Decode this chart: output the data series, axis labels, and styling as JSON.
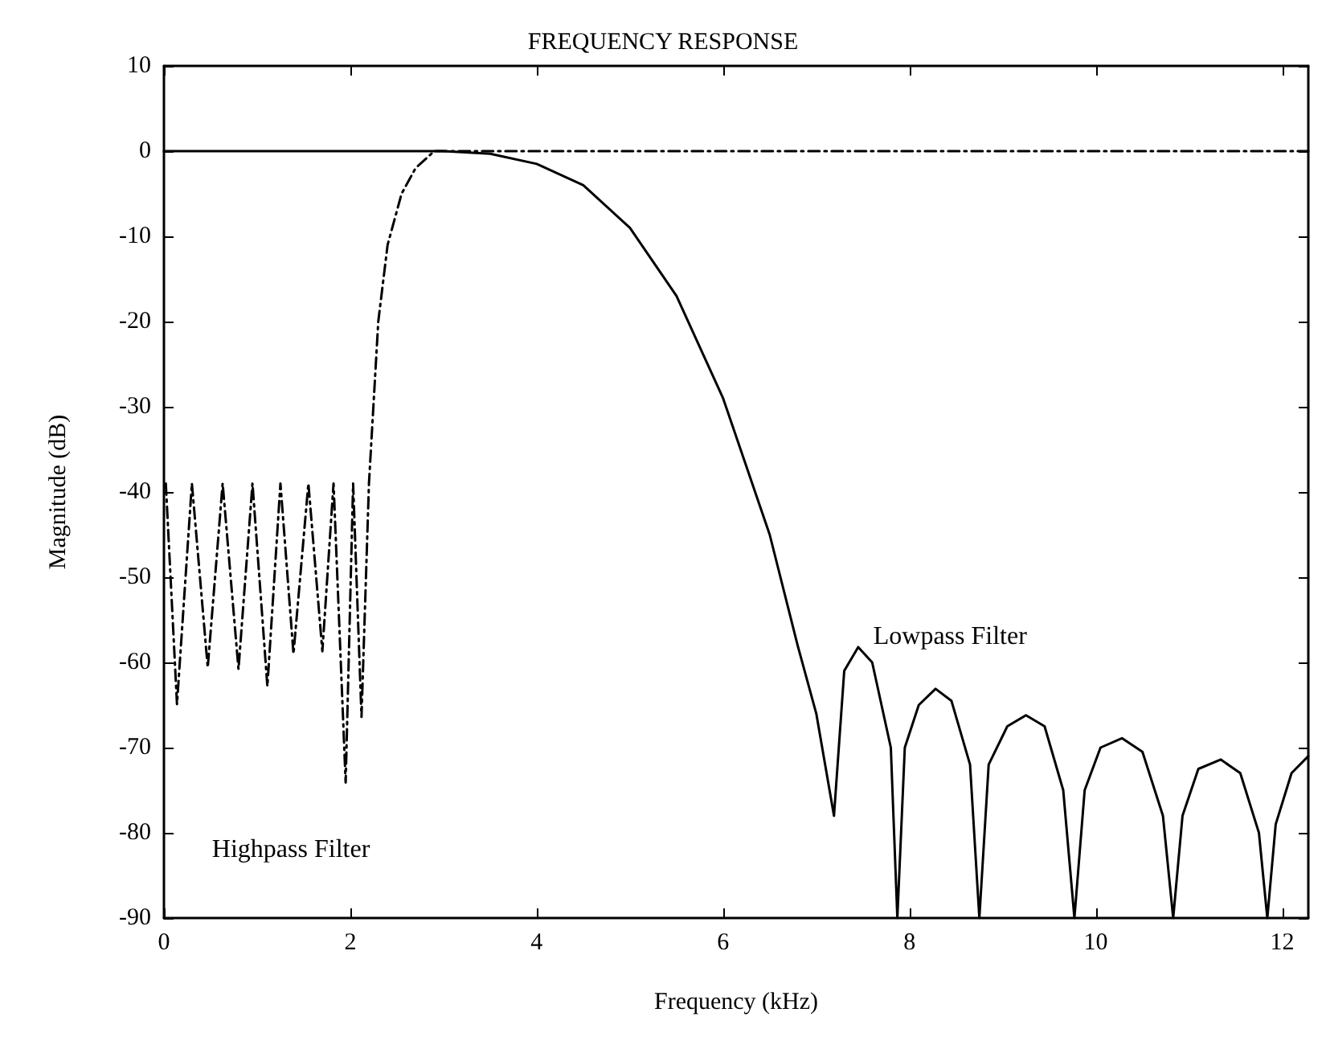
{
  "chart_data": {
    "type": "line",
    "title": "FREQUENCY RESPONSE",
    "xlabel": "Frequency (kHz)",
    "ylabel": "Magnitude (dB)",
    "xlim": [
      0,
      12.28
    ],
    "xticks": [
      0,
      2,
      4,
      6,
      8,
      10,
      12
    ],
    "ylim": [
      -90,
      10
    ],
    "yticks": [
      -90,
      -80,
      -70,
      -60,
      -50,
      -40,
      -30,
      -20,
      -10,
      0,
      10
    ],
    "grid": false,
    "marker": "none",
    "series": [
      {
        "color": "#000000",
        "line_style": "solid",
        "x": [
          0,
          1,
          2,
          3,
          3.5,
          4,
          4.5,
          5,
          5.5,
          6,
          6.5,
          6.8,
          7.0,
          7.19,
          7.3,
          7.45,
          7.6,
          7.8,
          7.87,
          7.95,
          8.1,
          8.28,
          8.45,
          8.65,
          8.75,
          8.85,
          9.05,
          9.25,
          9.45,
          9.65,
          9.77,
          9.88,
          10.05,
          10.28,
          10.5,
          10.72,
          10.83,
          10.93,
          11.1,
          11.34,
          11.55,
          11.75,
          11.84,
          11.93,
          12.1,
          12.28
        ],
        "values": [
          0,
          0,
          0,
          0,
          -0.3,
          -1.5,
          -4,
          -9,
          -17,
          -29,
          -45,
          -58,
          -66,
          -78,
          -61,
          -58.2,
          -60,
          -70,
          -90,
          -70,
          -65,
          -63.1,
          -64.5,
          -72,
          -90,
          -72,
          -67.5,
          -66.2,
          -67.5,
          -75,
          -90,
          -75,
          -70,
          -68.9,
          -70.5,
          -78,
          -90,
          -78,
          -72.5,
          -71.4,
          -73,
          -80,
          -90,
          -79,
          -73,
          -71
        ]
      },
      {
        "color": "#000000",
        "line_style": "dashed",
        "x": [
          0.02,
          0.14,
          0.3,
          0.47,
          0.63,
          0.8,
          0.95,
          1.11,
          1.25,
          1.39,
          1.55,
          1.7,
          1.82,
          1.95,
          2.03,
          2.12,
          2.2,
          2.3,
          2.4,
          2.55,
          2.7,
          2.9,
          4,
          6,
          8,
          10,
          12.28
        ],
        "values": [
          -39,
          -64.9,
          -39,
          -60.6,
          -39,
          -60.8,
          -39,
          -62.8,
          -39,
          -59,
          -39,
          -58.7,
          -39,
          -74.1,
          -39,
          -66.4,
          -39,
          -20,
          -11,
          -5,
          -2,
          0,
          0,
          0,
          0,
          0,
          0
        ]
      }
    ],
    "annotations": [
      "Lowpass Filter",
      "Highpass Filter"
    ]
  }
}
